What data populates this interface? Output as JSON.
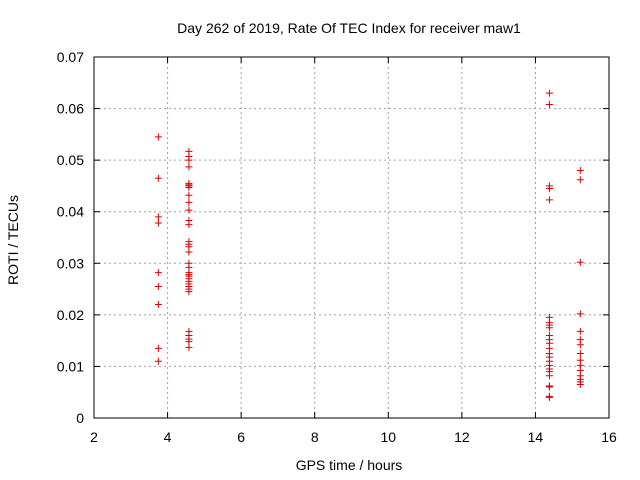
{
  "chart_data": {
    "type": "scatter",
    "title": "Day 262 of 2019, Rate Of TEC Index for receiver maw1",
    "xlabel": "GPS time / hours",
    "ylabel": "ROTI / TECUs",
    "xlim": [
      2,
      16
    ],
    "ylim": [
      0,
      0.07
    ],
    "xticks": [
      "2",
      "4",
      "6",
      "8",
      "10",
      "12",
      "14",
      "16"
    ],
    "yticks": [
      "0",
      "0.01",
      "0.02",
      "0.03",
      "0.04",
      "0.05",
      "0.06",
      "0.07"
    ],
    "grid": true,
    "marker": "plus",
    "color": "#e00000",
    "series": [
      {
        "name": "ROTI",
        "points": [
          {
            "x": 3.75,
            "y": 0.0545
          },
          {
            "x": 3.75,
            "y": 0.0465
          },
          {
            "x": 3.75,
            "y": 0.039
          },
          {
            "x": 3.75,
            "y": 0.0378
          },
          {
            "x": 3.75,
            "y": 0.0282
          },
          {
            "x": 3.75,
            "y": 0.0255
          },
          {
            "x": 3.75,
            "y": 0.022
          },
          {
            "x": 3.75,
            "y": 0.0135
          },
          {
            "x": 3.75,
            "y": 0.011
          },
          {
            "x": 4.58,
            "y": 0.0517
          },
          {
            "x": 4.58,
            "y": 0.0507
          },
          {
            "x": 4.58,
            "y": 0.05
          },
          {
            "x": 4.58,
            "y": 0.0487
          },
          {
            "x": 4.58,
            "y": 0.0455
          },
          {
            "x": 4.58,
            "y": 0.0452
          },
          {
            "x": 4.58,
            "y": 0.045
          },
          {
            "x": 4.58,
            "y": 0.0447
          },
          {
            "x": 4.58,
            "y": 0.0432
          },
          {
            "x": 4.58,
            "y": 0.0418
          },
          {
            "x": 4.58,
            "y": 0.0403
          },
          {
            "x": 4.58,
            "y": 0.0383
          },
          {
            "x": 4.58,
            "y": 0.0375
          },
          {
            "x": 4.58,
            "y": 0.0342
          },
          {
            "x": 4.58,
            "y": 0.0337
          },
          {
            "x": 4.58,
            "y": 0.0332
          },
          {
            "x": 4.58,
            "y": 0.0322
          },
          {
            "x": 4.58,
            "y": 0.03
          },
          {
            "x": 4.58,
            "y": 0.0292
          },
          {
            "x": 4.58,
            "y": 0.0282
          },
          {
            "x": 4.58,
            "y": 0.0278
          },
          {
            "x": 4.58,
            "y": 0.0275
          },
          {
            "x": 4.58,
            "y": 0.027
          },
          {
            "x": 4.58,
            "y": 0.0265
          },
          {
            "x": 4.58,
            "y": 0.026
          },
          {
            "x": 4.58,
            "y": 0.0255
          },
          {
            "x": 4.58,
            "y": 0.025
          },
          {
            "x": 4.58,
            "y": 0.0245
          },
          {
            "x": 4.58,
            "y": 0.0168
          },
          {
            "x": 4.58,
            "y": 0.016
          },
          {
            "x": 4.58,
            "y": 0.0153
          },
          {
            "x": 4.58,
            "y": 0.0148
          },
          {
            "x": 4.58,
            "y": 0.0137
          },
          {
            "x": 14.38,
            "y": 0.063
          },
          {
            "x": 14.38,
            "y": 0.0608
          },
          {
            "x": 14.38,
            "y": 0.045
          },
          {
            "x": 14.38,
            "y": 0.0445
          },
          {
            "x": 14.38,
            "y": 0.0423
          },
          {
            "x": 14.38,
            "y": 0.0195
          },
          {
            "x": 14.38,
            "y": 0.0185
          },
          {
            "x": 14.38,
            "y": 0.018
          },
          {
            "x": 14.38,
            "y": 0.0175
          },
          {
            "x": 14.38,
            "y": 0.016
          },
          {
            "x": 14.38,
            "y": 0.0152
          },
          {
            "x": 14.38,
            "y": 0.0145
          },
          {
            "x": 14.38,
            "y": 0.0135
          },
          {
            "x": 14.38,
            "y": 0.0125
          },
          {
            "x": 14.38,
            "y": 0.0118
          },
          {
            "x": 14.38,
            "y": 0.011
          },
          {
            "x": 14.38,
            "y": 0.0102
          },
          {
            "x": 14.38,
            "y": 0.0095
          },
          {
            "x": 14.38,
            "y": 0.009
          },
          {
            "x": 14.38,
            "y": 0.0082
          },
          {
            "x": 14.38,
            "y": 0.0062
          },
          {
            "x": 14.38,
            "y": 0.006
          },
          {
            "x": 14.38,
            "y": 0.0042
          },
          {
            "x": 14.38,
            "y": 0.004
          },
          {
            "x": 15.22,
            "y": 0.048
          },
          {
            "x": 15.22,
            "y": 0.0462
          },
          {
            "x": 15.22,
            "y": 0.0302
          },
          {
            "x": 15.22,
            "y": 0.0202
          },
          {
            "x": 15.22,
            "y": 0.0168
          },
          {
            "x": 15.22,
            "y": 0.0152
          },
          {
            "x": 15.22,
            "y": 0.0142
          },
          {
            "x": 15.22,
            "y": 0.0125
          },
          {
            "x": 15.22,
            "y": 0.0112
          },
          {
            "x": 15.22,
            "y": 0.0102
          },
          {
            "x": 15.22,
            "y": 0.0092
          },
          {
            "x": 15.22,
            "y": 0.0082
          },
          {
            "x": 15.22,
            "y": 0.0075
          },
          {
            "x": 15.22,
            "y": 0.007
          },
          {
            "x": 15.22,
            "y": 0.0065
          }
        ]
      }
    ]
  }
}
